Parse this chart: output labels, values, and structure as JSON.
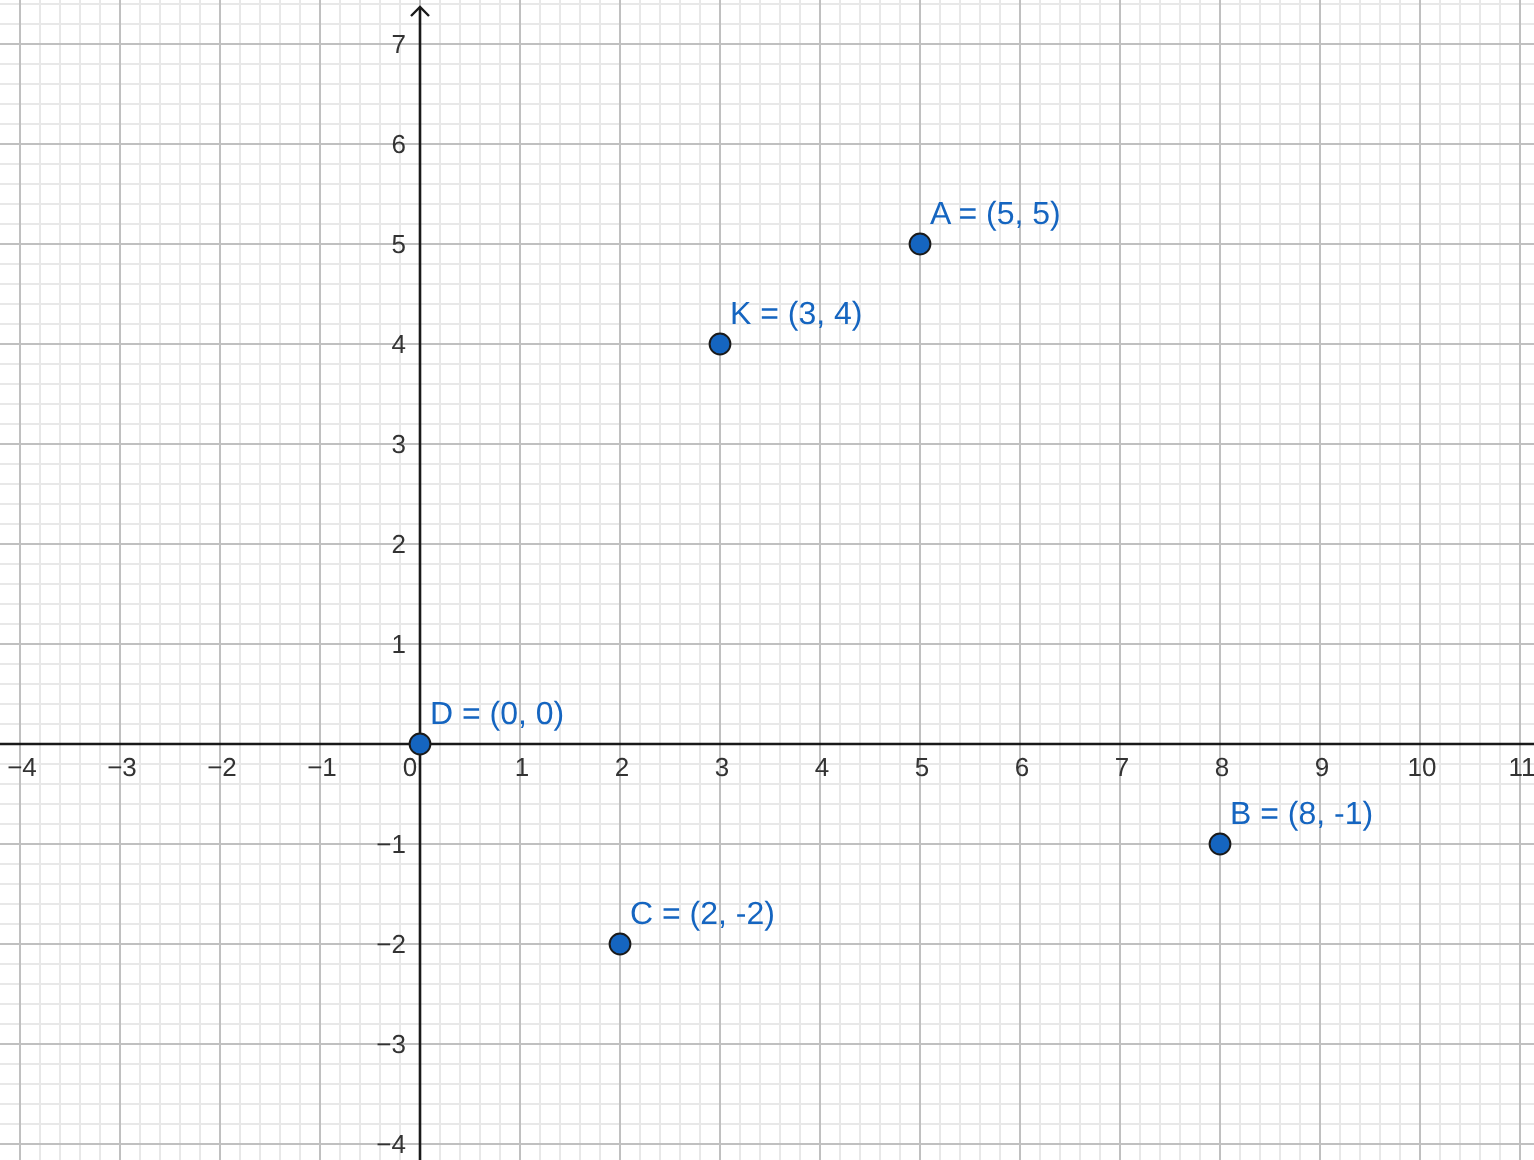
{
  "chart_data": {
    "type": "scatter",
    "x": [
      5,
      8,
      2,
      0,
      3
    ],
    "values": [
      5,
      -1,
      -2,
      0,
      4
    ],
    "value_labels": [
      "A = (5, 5)",
      "B = (8, -1)",
      "C = (2, -2)",
      "D = (0, 0)",
      "K = (3, 4)"
    ],
    "color": "#1565c0",
    "marker": "circle",
    "grid": true,
    "xlim": [
      -4.2,
      11.14
    ],
    "ylim": [
      -4.16,
      7.44
    ],
    "xticks": [
      {
        "value": -4,
        "label": "−4"
      },
      {
        "value": -3,
        "label": "−3"
      },
      {
        "value": -2,
        "label": "−2"
      },
      {
        "value": -1,
        "label": "−1"
      },
      {
        "value": 0,
        "label": "0"
      },
      1,
      2,
      3,
      4,
      5,
      6,
      7,
      8,
      9,
      10,
      11,
      {
        "value": -3.8,
        "label": null
      },
      {
        "value": -3.6,
        "label": null
      },
      {
        "value": -3.4,
        "label": null
      },
      {
        "value": -3.2,
        "label": null
      },
      {
        "value": -2.8,
        "label": null
      },
      {
        "value": -2.6,
        "label": null
      },
      {
        "value": -2.4,
        "label": null
      },
      {
        "value": -2.2,
        "label": null
      },
      {
        "value": -1.8,
        "label": null
      },
      {
        "value": -1.6,
        "label": null
      },
      {
        "value": -1.4,
        "label": null
      },
      {
        "value": -1.2,
        "label": null
      },
      {
        "value": -0.8,
        "label": null
      },
      {
        "value": -0.6,
        "label": null
      },
      {
        "value": -0.4,
        "label": null
      },
      {
        "value": -0.2,
        "label": null
      },
      {
        "value": 0.2,
        "label": null
      },
      {
        "value": 0.4,
        "label": null
      },
      {
        "value": 0.6,
        "label": null
      },
      {
        "value": 0.8,
        "label": null
      },
      {
        "value": 1.2,
        "label": null
      },
      {
        "value": 1.4,
        "label": null
      },
      {
        "value": 1.6,
        "label": null
      },
      {
        "value": 1.8,
        "label": null
      },
      {
        "value": 2.2,
        "label": null
      },
      {
        "value": 2.4,
        "label": null
      },
      {
        "value": 2.6,
        "label": null
      },
      {
        "value": 2.8,
        "label": null
      },
      {
        "value": 3.2,
        "label": null
      },
      {
        "value": 3.4,
        "label": null
      },
      {
        "value": 3.6,
        "label": null
      },
      {
        "value": 3.8,
        "label": null
      },
      {
        "value": 4.2,
        "label": null
      },
      {
        "value": 4.4,
        "label": null
      },
      {
        "value": 4.6,
        "label": null
      },
      {
        "value": 4.8,
        "label": null
      },
      {
        "value": 5.2,
        "label": null
      },
      {
        "value": 5.4,
        "label": null
      },
      {
        "value": 5.6,
        "label": null
      },
      {
        "value": 5.8,
        "label": null
      },
      {
        "value": 6.2,
        "label": null
      },
      {
        "value": 6.4,
        "label": null
      },
      {
        "value": 6.6,
        "label": null
      },
      {
        "value": 6.8,
        "label": null
      },
      {
        "value": 7.2,
        "label": null
      },
      {
        "value": 7.4,
        "label": null
      },
      {
        "value": 7.6,
        "label": null
      },
      {
        "value": 7.8,
        "label": null
      },
      {
        "value": 8.2,
        "label": null
      },
      {
        "value": 8.4,
        "label": null
      },
      {
        "value": 8.6,
        "label": null
      },
      {
        "value": 8.8,
        "label": null
      },
      {
        "value": 9.2,
        "label": null
      },
      {
        "value": 9.4,
        "label": null
      },
      {
        "value": 9.6,
        "label": null
      },
      {
        "value": 9.8,
        "label": null
      },
      {
        "value": 10.2,
        "label": null
      },
      {
        "value": 10.4,
        "label": null
      },
      {
        "value": 10.6,
        "label": null
      },
      {
        "value": 10.8,
        "label": null
      }
    ],
    "yticks": [
      {
        "value": -4,
        "label": "−4"
      },
      {
        "value": -3,
        "label": "−3"
      },
      {
        "value": -2,
        "label": "−2"
      },
      {
        "value": -1,
        "label": "−1"
      },
      1,
      2,
      3,
      4,
      5,
      6,
      7,
      {
        "value": -3.8,
        "label": null
      },
      {
        "value": -3.6,
        "label": null
      },
      {
        "value": -3.4,
        "label": null
      },
      {
        "value": -3.2,
        "label": null
      },
      {
        "value": -2.8,
        "label": null
      },
      {
        "value": -2.6,
        "label": null
      },
      {
        "value": -2.4,
        "label": null
      },
      {
        "value": -2.2,
        "label": null
      },
      {
        "value": -1.8,
        "label": null
      },
      {
        "value": -1.6,
        "label": null
      },
      {
        "value": -1.4,
        "label": null
      },
      {
        "value": -1.2,
        "label": null
      },
      {
        "value": -0.8,
        "label": null
      },
      {
        "value": -0.6,
        "label": null
      },
      {
        "value": -0.4,
        "label": null
      },
      {
        "value": -0.2,
        "label": null
      },
      {
        "value": 0.2,
        "label": null
      },
      {
        "value": 0.4,
        "label": null
      },
      {
        "value": 0.6,
        "label": null
      },
      {
        "value": 0.8,
        "label": null
      },
      {
        "value": 1.2,
        "label": null
      },
      {
        "value": 1.4,
        "label": null
      },
      {
        "value": 1.6,
        "label": null
      },
      {
        "value": 1.8,
        "label": null
      },
      {
        "value": 2.2,
        "label": null
      },
      {
        "value": 2.4,
        "label": null
      },
      {
        "value": 2.6,
        "label": null
      },
      {
        "value": 2.8,
        "label": null
      },
      {
        "value": 3.2,
        "label": null
      },
      {
        "value": 3.4,
        "label": null
      },
      {
        "value": 3.6,
        "label": null
      },
      {
        "value": 3.8,
        "label": null
      },
      {
        "value": 4.2,
        "label": null
      },
      {
        "value": 4.4,
        "label": null
      },
      {
        "value": 4.6,
        "label": null
      },
      {
        "value": 4.8,
        "label": null
      },
      {
        "value": 5.2,
        "label": null
      },
      {
        "value": 5.4,
        "label": null
      },
      {
        "value": 5.6,
        "label": null
      },
      {
        "value": 5.8,
        "label": null
      },
      {
        "value": 6.2,
        "label": null
      },
      {
        "value": 6.4,
        "label": null
      },
      {
        "value": 6.6,
        "label": null
      },
      {
        "value": 6.8,
        "label": null
      },
      {
        "value": 7.2,
        "label": null
      },
      {
        "value": 7.4,
        "label": null
      }
    ]
  }
}
